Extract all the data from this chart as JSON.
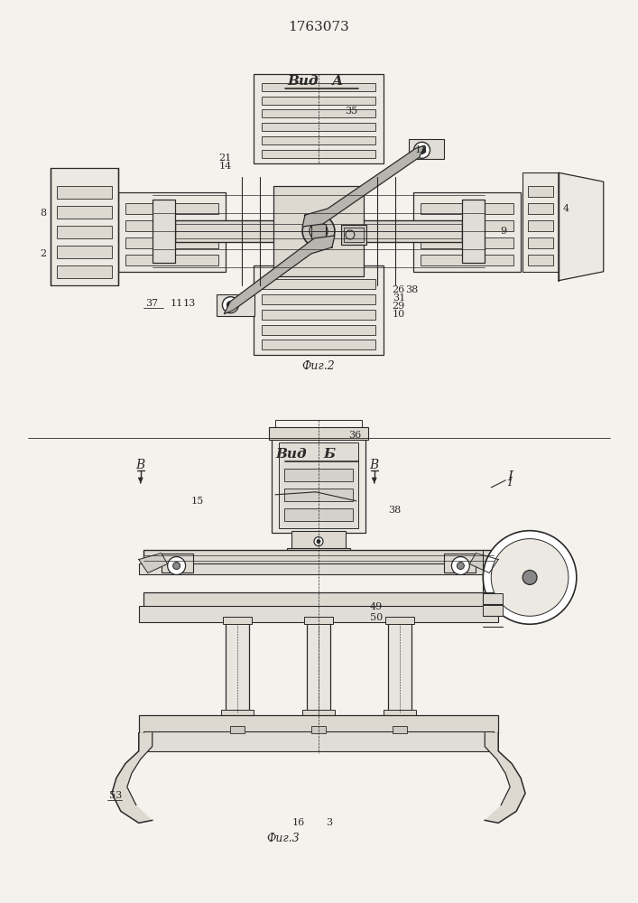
{
  "patent_number": "1763073",
  "bg_color": "#f5f2ee",
  "line_color": "#2a2a2a",
  "fig2_caption": "Фиг.2",
  "fig3_caption": "Фиг.3",
  "vid_a": "ВидА",
  "vid_b": "ВидБ"
}
